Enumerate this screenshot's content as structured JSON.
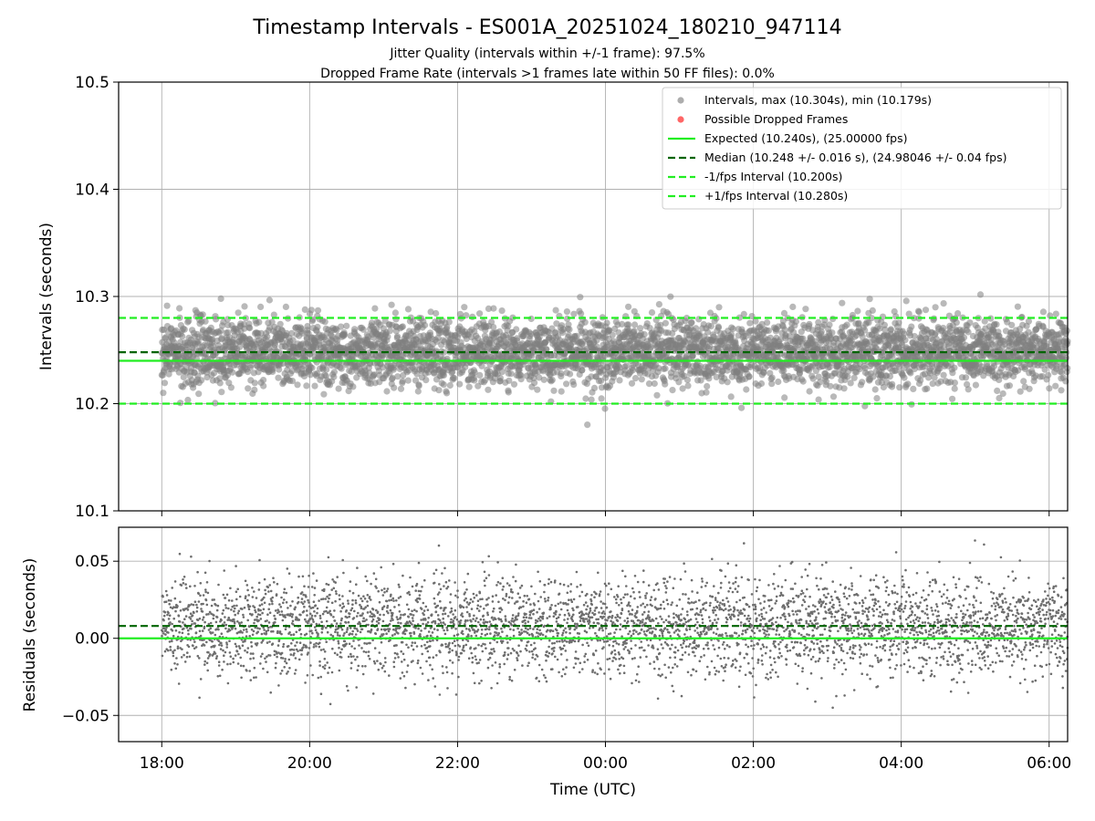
{
  "figure": {
    "title": "Timestamp Intervals - ES001A_20251024_180210_947114",
    "subtitle_1": "Jitter Quality (intervals within +/-1 frame): 97.5%",
    "subtitle_2": "Dropped Frame Rate (intervals >1 frames late within 50 FF files): 0.0%"
  },
  "colors": {
    "points": "#808080",
    "dropped": "#ff4040",
    "expected": "#22ee22",
    "median": "#006400",
    "fps_bounds": "#22ee22"
  },
  "chart_data": [
    {
      "type": "scatter",
      "ylabel": "Intervals (seconds)",
      "ylim": [
        10.1,
        10.5
      ],
      "yticks": [
        "10.1",
        "10.2",
        "10.3",
        "10.4",
        "10.5"
      ],
      "xlim": [
        "17:25",
        "06:15"
      ],
      "grid": true,
      "legend_placement": "top-right",
      "legend": [
        {
          "label": "Intervals, max (10.304s), min (10.179s)",
          "kind": "marker",
          "color": "#999999"
        },
        {
          "label": "Possible Dropped Frames",
          "kind": "marker",
          "color": "#ff6666"
        },
        {
          "label": "Expected (10.240s), (25.00000 fps)",
          "kind": "line",
          "color": "#22ee22",
          "dash": "solid"
        },
        {
          "label": "Median (10.248 +/- 0.016 s), (24.98046 +/- 0.04 fps)",
          "kind": "line",
          "color": "#006400",
          "dash": "dashed"
        },
        {
          "label": "-1/fps Interval (10.200s)",
          "kind": "line",
          "color": "#22ee22",
          "dash": "dashed"
        },
        {
          "label": "+1/fps Interval (10.280s)",
          "kind": "line",
          "color": "#22ee22",
          "dash": "dashed"
        }
      ],
      "series": [
        {
          "x_range": [
            "18:00",
            "06:15"
          ],
          "approx_count": 4300,
          "y_center": 10.248,
          "y_spread_sd": 0.016,
          "y_max": 10.304,
          "y_min": 10.179
        }
      ],
      "reference_lines": [
        {
          "y": 10.24,
          "style": "solid"
        },
        {
          "y": 10.248,
          "style": "dashed"
        },
        {
          "y": 10.2,
          "style": "dashed"
        },
        {
          "y": 10.28,
          "style": "dashed"
        }
      ]
    },
    {
      "type": "scatter",
      "ylabel": "Residuals (seconds)",
      "xlabel": "Time (UTC)",
      "ylim": [
        -0.067,
        0.072
      ],
      "yticks": [
        "−0.05",
        "0.00",
        "0.05"
      ],
      "yticks_values": [
        -0.05,
        0.0,
        0.05
      ],
      "xticks": [
        "18:00",
        "20:00",
        "22:00",
        "00:00",
        "02:00",
        "04:00",
        "06:00"
      ],
      "grid": true,
      "series": [
        {
          "x_range": [
            "18:00",
            "06:15"
          ],
          "approx_count": 4300,
          "y_center": 0.008,
          "y_spread_sd": 0.016,
          "y_max": 0.064,
          "y_min": -0.061
        }
      ],
      "reference_lines": [
        {
          "y": 0.0,
          "style": "solid"
        },
        {
          "y": 0.008,
          "style": "dashed"
        }
      ]
    }
  ]
}
